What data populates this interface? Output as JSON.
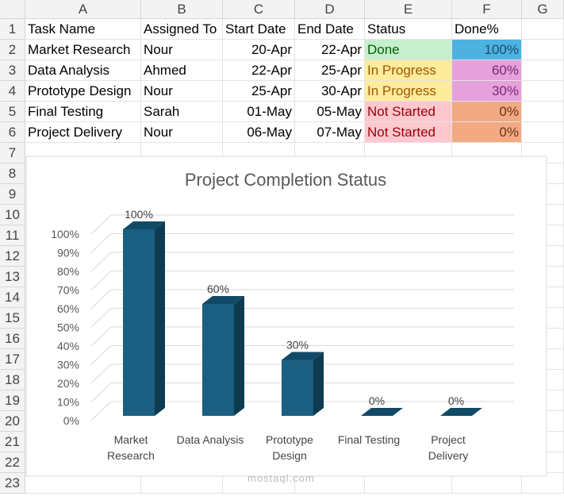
{
  "columns": [
    "A",
    "B",
    "C",
    "D",
    "E",
    "F",
    "G"
  ],
  "rows": [
    1,
    2,
    3,
    4,
    5,
    6,
    7,
    8,
    9,
    10,
    11,
    12,
    13,
    14,
    15,
    16,
    17,
    18,
    19,
    20,
    21,
    22,
    23
  ],
  "table": {
    "header": [
      "Task Name",
      "Assigned To",
      "Start Date",
      "End Date",
      "Status",
      "Done%"
    ],
    "rows": [
      [
        "Market Research",
        "Nour",
        "20-Apr",
        "22-Apr",
        "Done",
        "100%"
      ],
      [
        "Data Analysis",
        "Ahmed",
        "22-Apr",
        "25-Apr",
        "In Progress",
        "60%"
      ],
      [
        "Prototype Design",
        "Nour",
        "25-Apr",
        "30-Apr",
        "In Progress",
        "30%"
      ],
      [
        "Final Testing",
        "Sarah",
        "01-May",
        "05-May",
        "Not Started",
        "0%"
      ],
      [
        "Project Delivery",
        "Nour",
        "06-May",
        "07-May",
        "Not Started",
        "0%"
      ]
    ]
  },
  "chart_data": {
    "type": "bar3d",
    "title": "Project Completion Status",
    "categories": [
      "Market Research",
      "Data Analysis",
      "Prototype Design",
      "Final Testing",
      "Project Delivery"
    ],
    "values": [
      100,
      60,
      30,
      0,
      0
    ],
    "value_labels": [
      "100%",
      "60%",
      "30%",
      "0%",
      "0%"
    ],
    "color": "#1b5f82",
    "ylim": [
      0,
      100
    ],
    "yticks": [
      {
        "value": 0,
        "label": "0%"
      },
      {
        "value": 10,
        "label": "10%"
      },
      {
        "value": 20,
        "label": "20%"
      },
      {
        "value": 30,
        "label": "30%"
      },
      {
        "value": 40,
        "label": "40%"
      },
      {
        "value": 50,
        "label": "50%"
      },
      {
        "value": 60,
        "label": "60%"
      },
      {
        "value": 70,
        "label": "70%"
      },
      {
        "value": 80,
        "label": "80%"
      },
      {
        "value": 90,
        "label": "90%"
      },
      {
        "value": 100,
        "label": "100%"
      }
    ],
    "grid": true
  },
  "watermark": "mostaql.com"
}
